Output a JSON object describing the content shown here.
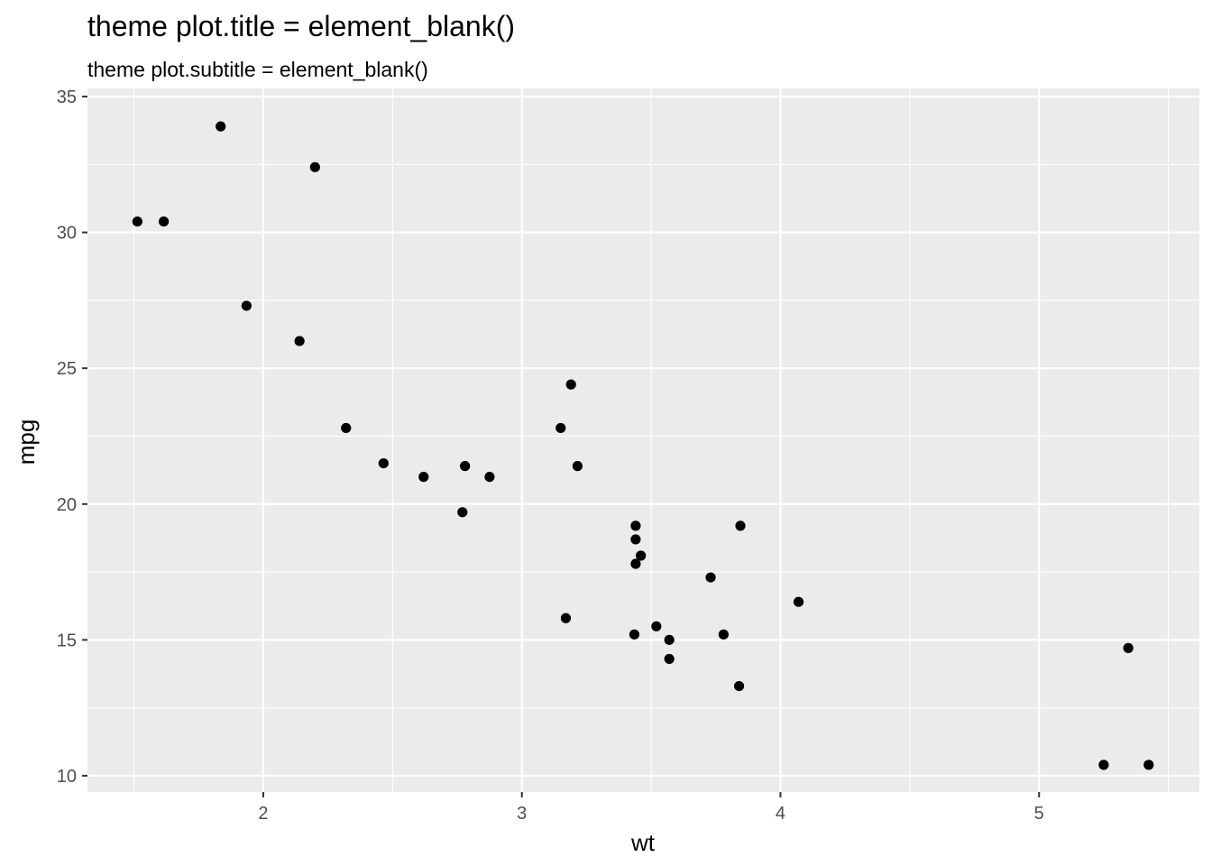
{
  "chart_data": {
    "type": "scatter",
    "title": "theme plot.title = element_blank()",
    "subtitle": "theme plot.subtitle = element_blank()",
    "xlabel": "wt",
    "ylabel": "mpg",
    "xlim": [
      1.32,
      5.62
    ],
    "ylim": [
      9.4,
      35.3
    ],
    "x_ticks": [
      2,
      3,
      4,
      5
    ],
    "y_ticks": [
      10,
      15,
      20,
      25,
      30,
      35
    ],
    "x_minor": [
      1.5,
      2.5,
      3.5,
      4.5,
      5.5
    ],
    "y_minor": [
      12.5,
      17.5,
      22.5,
      27.5,
      32.5
    ],
    "grid": true,
    "colors": {
      "panel": "#ebebeb",
      "grid": "#ffffff",
      "point": "#000000"
    },
    "points": [
      {
        "x": 2.62,
        "y": 21.0
      },
      {
        "x": 2.875,
        "y": 21.0
      },
      {
        "x": 2.32,
        "y": 22.8
      },
      {
        "x": 3.215,
        "y": 21.4
      },
      {
        "x": 3.44,
        "y": 18.7
      },
      {
        "x": 3.46,
        "y": 18.1
      },
      {
        "x": 3.57,
        "y": 14.3
      },
      {
        "x": 3.19,
        "y": 24.4
      },
      {
        "x": 3.15,
        "y": 22.8
      },
      {
        "x": 3.44,
        "y": 19.2
      },
      {
        "x": 3.44,
        "y": 17.8
      },
      {
        "x": 4.07,
        "y": 16.4
      },
      {
        "x": 3.73,
        "y": 17.3
      },
      {
        "x": 3.78,
        "y": 15.2
      },
      {
        "x": 5.25,
        "y": 10.4
      },
      {
        "x": 5.424,
        "y": 10.4
      },
      {
        "x": 5.345,
        "y": 14.7
      },
      {
        "x": 2.2,
        "y": 32.4
      },
      {
        "x": 1.615,
        "y": 30.4
      },
      {
        "x": 1.835,
        "y": 33.9
      },
      {
        "x": 2.465,
        "y": 21.5
      },
      {
        "x": 3.52,
        "y": 15.5
      },
      {
        "x": 3.435,
        "y": 15.2
      },
      {
        "x": 3.84,
        "y": 13.3
      },
      {
        "x": 3.845,
        "y": 19.2
      },
      {
        "x": 1.935,
        "y": 27.3
      },
      {
        "x": 2.14,
        "y": 26.0
      },
      {
        "x": 1.513,
        "y": 30.4
      },
      {
        "x": 3.17,
        "y": 15.8
      },
      {
        "x": 2.77,
        "y": 19.7
      },
      {
        "x": 3.57,
        "y": 15.0
      },
      {
        "x": 2.78,
        "y": 21.4
      }
    ]
  }
}
